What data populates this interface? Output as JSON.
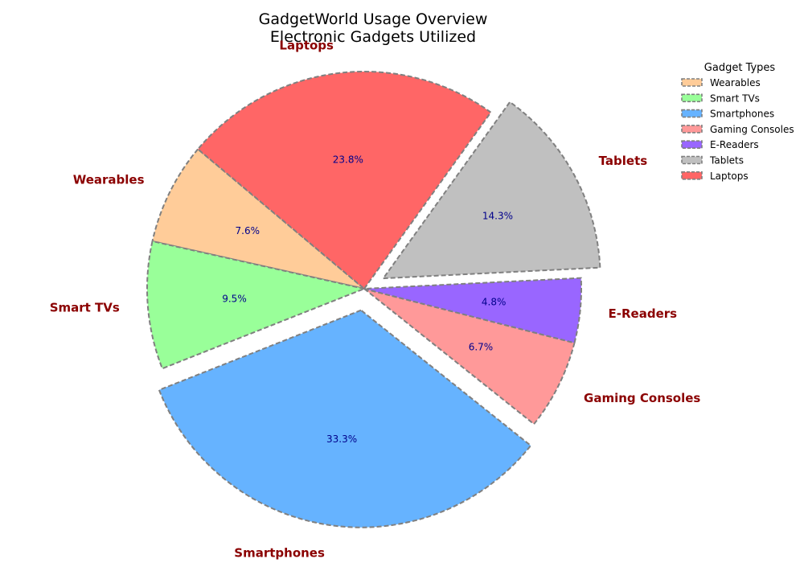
{
  "chart_data": {
    "type": "pie",
    "title": "GadgetWorld Usage Overview",
    "subtitle": "Electronic Gadgets Utilized",
    "legend_title": "Gadget Types",
    "legend_position": "top-right",
    "slices": [
      {
        "label": "Wearables",
        "percent": 7.6,
        "color": "#ffcc99",
        "explode": false
      },
      {
        "label": "Smart TVs",
        "percent": 9.5,
        "color": "#99ff99",
        "explode": false
      },
      {
        "label": "Smartphones",
        "percent": 33.3,
        "color": "#66b3ff",
        "explode": true
      },
      {
        "label": "Gaming Consoles",
        "percent": 6.7,
        "color": "#ff9999",
        "explode": false
      },
      {
        "label": "E-Readers",
        "percent": 4.8,
        "color": "#9966ff",
        "explode": false
      },
      {
        "label": "Tablets",
        "percent": 14.3,
        "color": "#c0c0c0",
        "explode": true
      },
      {
        "label": "Laptops",
        "percent": 23.8,
        "color": "#ff6666",
        "explode": false
      }
    ],
    "pct_labels": [
      "7.6%",
      "9.5%",
      "33.3%",
      "6.7%",
      "4.8%",
      "14.3%",
      "23.8%"
    ]
  }
}
